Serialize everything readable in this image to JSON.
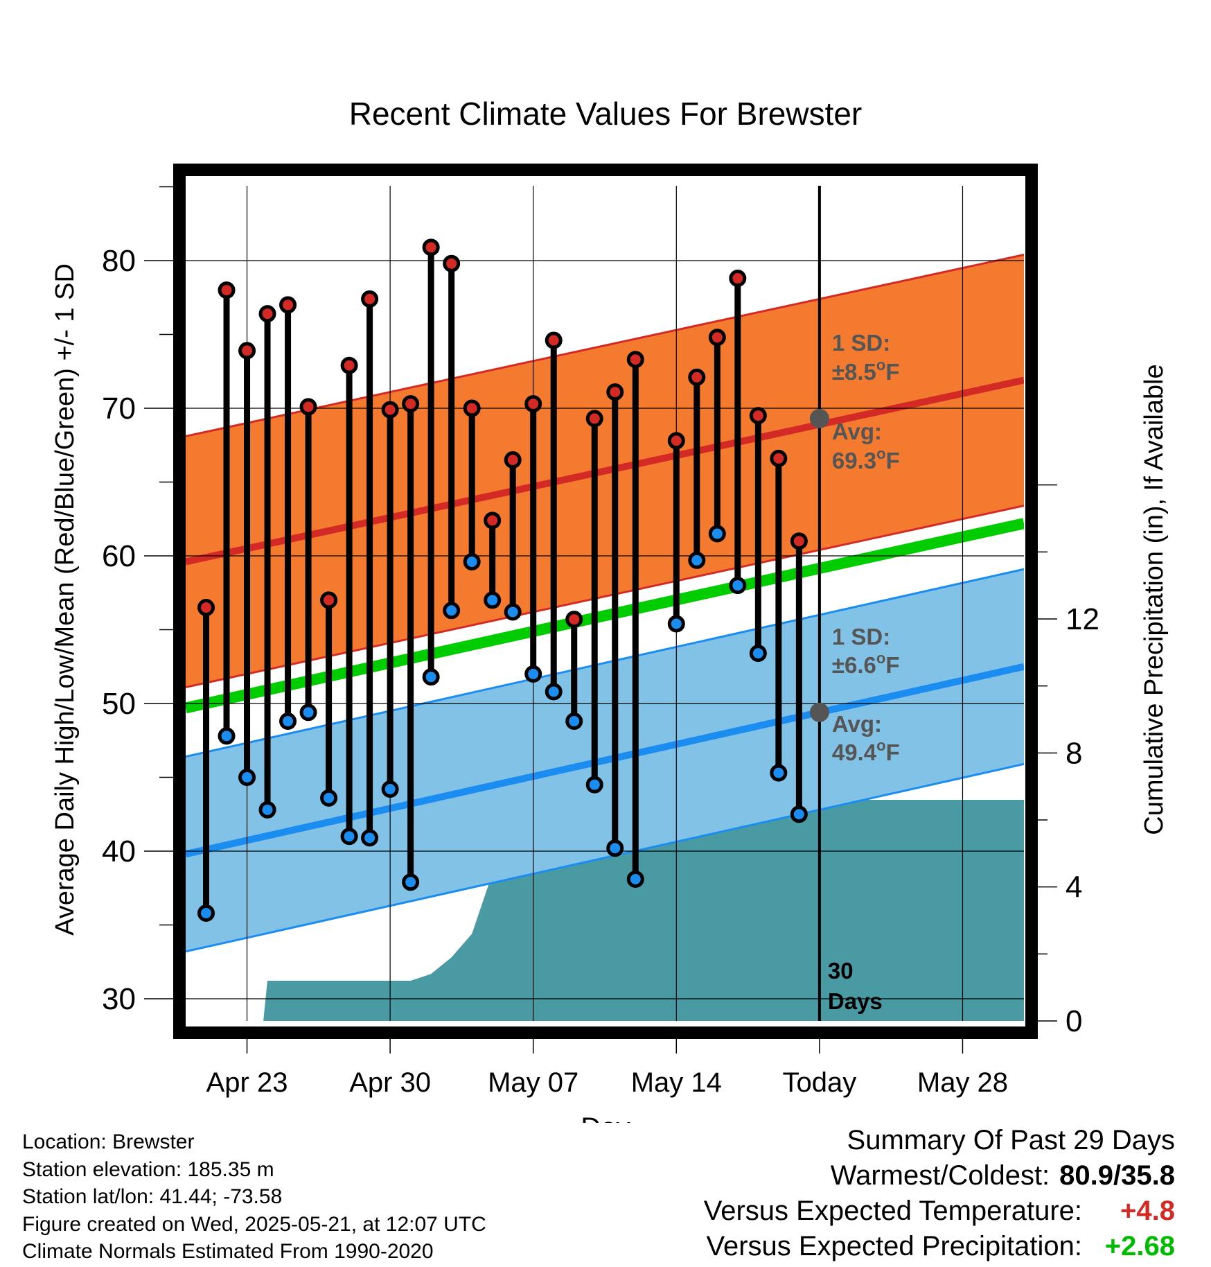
{
  "chart_data": {
    "type": "line",
    "title": "Recent Climate Values For Brewster",
    "xlabel": "Day",
    "ylabel": "Average Daily High/Low/Mean (Red/Blue/Green) +/- 1 SD",
    "y2label": "Cumulative Precipitation (in), If Available",
    "ylim": [
      27.5,
      86
    ],
    "y2lim": [
      0,
      17.4
    ],
    "y_ticks": [
      30,
      40,
      50,
      60,
      70,
      80
    ],
    "y2_ticks": [
      0,
      4,
      8,
      12
    ],
    "x_range": [
      "2025-04-20",
      "2025-05-31"
    ],
    "x_ticks": [
      {
        "date": "2025-04-23",
        "label": "Apr 23"
      },
      {
        "date": "2025-04-30",
        "label": "Apr 30"
      },
      {
        "date": "2025-05-07",
        "label": "May 07"
      },
      {
        "date": "2025-05-14",
        "label": "May 14"
      },
      {
        "date": "2025-05-21",
        "label": "Today"
      },
      {
        "date": "2025-05-28",
        "label": "May 28"
      }
    ],
    "grid": true,
    "colors": {
      "high_band": "#f47a30",
      "high_line": "#d42a25",
      "low_band": "#82c2e6",
      "low_line": "#1b8cf0",
      "mean_line": "#00cc00",
      "precip": "#4a9aa3",
      "high_marker": "#d42a25",
      "low_marker": "#1b8cf0",
      "today_marker": "#555555",
      "annotation_text": "#555555"
    },
    "normal_high": {
      "start_date": "2025-04-20",
      "end_date": "2025-05-31",
      "start": 59.6,
      "end": 71.9,
      "sd": 8.5
    },
    "normal_low": {
      "start_date": "2025-04-20",
      "end_date": "2025-05-31",
      "start": 39.8,
      "end": 52.5,
      "sd": 6.6
    },
    "normal_mean": {
      "start_date": "2025-04-20",
      "end_date": "2025-05-31",
      "start": 49.7,
      "end": 62.2
    },
    "daily": [
      {
        "date": "2025-04-21",
        "high": 56.5,
        "low": 35.8
      },
      {
        "date": "2025-04-22",
        "high": 78.0,
        "low": 47.8
      },
      {
        "date": "2025-04-23",
        "high": 73.9,
        "low": 45.0
      },
      {
        "date": "2025-04-24",
        "high": 76.4,
        "low": 42.8
      },
      {
        "date": "2025-04-25",
        "high": 77.0,
        "low": 48.8
      },
      {
        "date": "2025-04-26",
        "high": 70.1,
        "low": 49.4
      },
      {
        "date": "2025-04-27",
        "high": 57.0,
        "low": 43.6
      },
      {
        "date": "2025-04-28",
        "high": 72.9,
        "low": 41.0
      },
      {
        "date": "2025-04-29",
        "high": 77.4,
        "low": 40.9
      },
      {
        "date": "2025-04-30",
        "high": 69.9,
        "low": 44.2
      },
      {
        "date": "2025-05-01",
        "high": 70.3,
        "low": 37.9
      },
      {
        "date": "2025-05-02",
        "high": 80.9,
        "low": 51.8
      },
      {
        "date": "2025-05-03",
        "high": 79.8,
        "low": 56.3
      },
      {
        "date": "2025-05-04",
        "high": 70.0,
        "low": 59.6
      },
      {
        "date": "2025-05-05",
        "high": 62.4,
        "low": 57.0
      },
      {
        "date": "2025-05-06",
        "high": 66.5,
        "low": 56.2
      },
      {
        "date": "2025-05-07",
        "high": 70.3,
        "low": 52.0
      },
      {
        "date": "2025-05-08",
        "high": 74.6,
        "low": 50.8
      },
      {
        "date": "2025-05-09",
        "high": 55.7,
        "low": 48.8
      },
      {
        "date": "2025-05-10",
        "high": 69.3,
        "low": 44.5
      },
      {
        "date": "2025-05-11",
        "high": 71.1,
        "low": 40.2
      },
      {
        "date": "2025-05-12",
        "high": 73.3,
        "low": 38.1
      },
      {
        "date": "2025-05-14",
        "high": 67.8,
        "low": 55.4
      },
      {
        "date": "2025-05-15",
        "high": 72.1,
        "low": 59.7
      },
      {
        "date": "2025-05-16",
        "high": 74.8,
        "low": 61.5
      },
      {
        "date": "2025-05-17",
        "high": 78.8,
        "low": 58.0
      },
      {
        "date": "2025-05-18",
        "high": 69.5,
        "low": 53.4
      },
      {
        "date": "2025-05-19",
        "high": 66.6,
        "low": 45.3
      },
      {
        "date": "2025-05-20",
        "high": 61.0,
        "low": 42.5
      }
    ],
    "precip": [
      {
        "date": "2025-04-22",
        "value": 0
      },
      {
        "date": "2025-04-23",
        "value": 0
      },
      {
        "date": "2025-04-23.8",
        "value": 0
      },
      {
        "date": "2025-04-24",
        "value": 1.2
      },
      {
        "date": "2025-05-01",
        "value": 1.2
      },
      {
        "date": "2025-05-02",
        "value": 1.4
      },
      {
        "date": "2025-05-03",
        "value": 1.9
      },
      {
        "date": "2025-05-04",
        "value": 2.6
      },
      {
        "date": "2025-05-05",
        "value": 4.4
      },
      {
        "date": "2025-05-06",
        "value": 4.5
      },
      {
        "date": "2025-05-07",
        "value": 4.5
      },
      {
        "date": "2025-05-08",
        "value": 4.8
      },
      {
        "date": "2025-05-09",
        "value": 6.3
      },
      {
        "date": "2025-05-13",
        "value": 6.3
      },
      {
        "date": "2025-05-14",
        "value": 6.5
      },
      {
        "date": "2025-05-16",
        "value": 6.5
      },
      {
        "date": "2025-05-17",
        "value": 6.6
      },
      {
        "date": "2025-05-31",
        "value": 6.6
      }
    ],
    "annotations": {
      "high_sd_label": "1 SD:",
      "high_sd_value": "±8.5",
      "high_avg_label": "Avg:",
      "high_avg_value": "69.3",
      "low_sd_label": "1 SD:",
      "low_sd_value": "±6.6",
      "low_avg_label": "Avg:",
      "low_avg_value": "49.4",
      "degree_unit": "o",
      "unit_suffix": "F",
      "days_value": "30",
      "days_label": "Days"
    }
  },
  "footer": {
    "location": "Location: Brewster",
    "elevation": "Station elevation: 185.35 m",
    "latlon": "Station lat/lon: 41.44; -73.58",
    "created": "Figure created on Wed, 2025-05-21, at 12:07 UTC",
    "normals": "Climate Normals Estimated From 1990-2020"
  },
  "summary": {
    "title": "Summary Of Past 29 Days",
    "warmest_label": "Warmest/Coldest:",
    "warmest_value": "80.9/35.8",
    "temp_label": "Versus Expected Temperature:",
    "temp_value": "+4.8",
    "temp_color": "#d42a25",
    "precip_label": "Versus Expected Precipitation:",
    "precip_value": "+2.68",
    "precip_color": "#00bb00"
  }
}
